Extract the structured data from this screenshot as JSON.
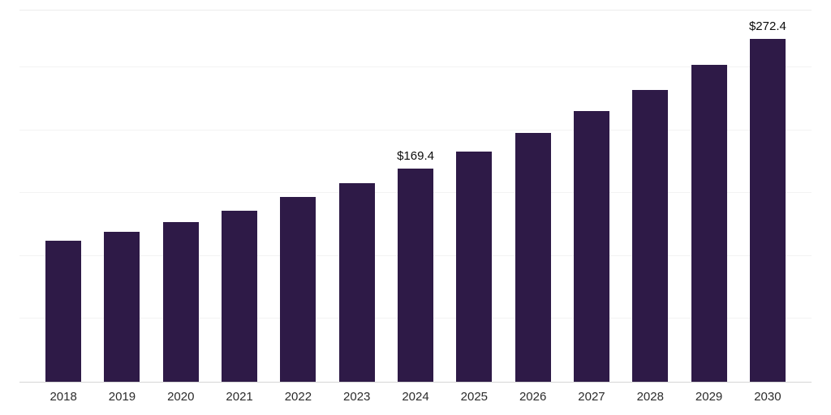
{
  "chart_data": {
    "type": "bar",
    "title": "",
    "xlabel": "",
    "ylabel": "",
    "categories": [
      "2018",
      "2019",
      "2020",
      "2021",
      "2022",
      "2023",
      "2024",
      "2025",
      "2026",
      "2027",
      "2028",
      "2029",
      "2030"
    ],
    "values": [
      112.0,
      119.0,
      127.0,
      136.0,
      147.0,
      158.0,
      169.4,
      183.0,
      198.0,
      215.0,
      232.0,
      252.0,
      272.4
    ],
    "point_labels": [
      "",
      "",
      "",
      "",
      "",
      "",
      "$169.4",
      "",
      "",
      "",
      "",
      "",
      "$272.4"
    ],
    "ylim": [
      0,
      295
    ],
    "gridline_interval": 50,
    "grid": true,
    "legend": "none",
    "bar_color": "#2e1a47",
    "axis_line_color": "#d6d6d6",
    "gridline_color": "#f3f3f3",
    "label_color": "#2b2b2b"
  }
}
